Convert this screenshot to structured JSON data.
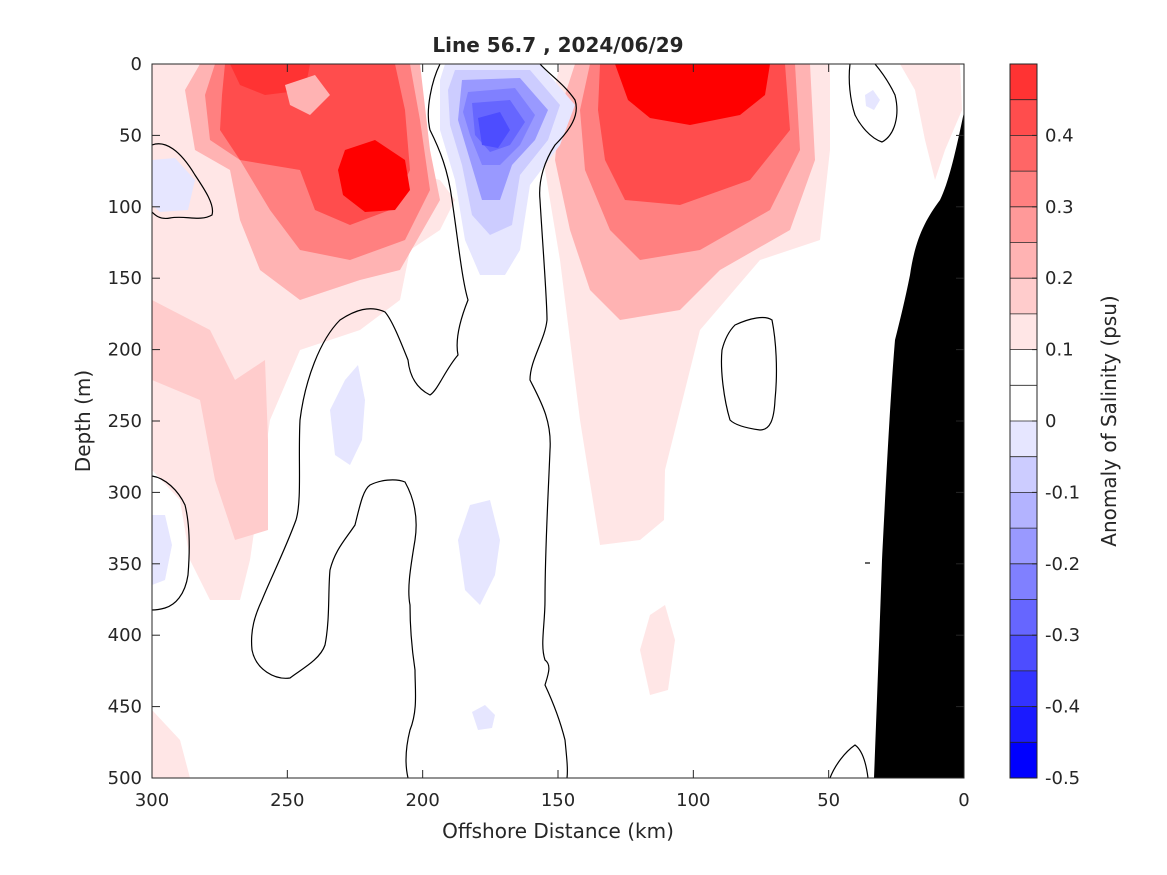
{
  "chart_data": {
    "type": "heatmap",
    "title": "Line 56.7 , 2024/06/29",
    "xlabel": "Offshore Distance (km)",
    "ylabel": "Depth (m)",
    "xlim": [
      300,
      0
    ],
    "ylim": [
      500,
      0
    ],
    "x_reversed": true,
    "y_reversed": true,
    "x_ticks": [
      300,
      250,
      200,
      150,
      100,
      50,
      0
    ],
    "y_ticks": [
      0,
      50,
      100,
      150,
      200,
      250,
      300,
      350,
      400,
      450,
      500
    ],
    "colorbar": {
      "label": "Anomaly of Salinity (psu)",
      "range": [
        -0.5,
        0.5
      ],
      "levels": [
        -0.5,
        -0.45,
        -0.4,
        -0.35,
        -0.3,
        -0.25,
        -0.2,
        -0.15,
        -0.1,
        -0.05,
        0,
        0.05,
        0.1,
        0.15,
        0.2,
        0.25,
        0.3,
        0.35,
        0.4,
        0.45,
        0.5
      ],
      "ticks": [
        -0.5,
        -0.4,
        -0.3,
        -0.2,
        -0.1,
        0,
        0.1,
        0.2,
        0.3,
        0.4
      ],
      "tick_labels": [
        "-0.5",
        "-0.4",
        "-0.3",
        "-0.2",
        "-0.1",
        "0",
        "0.1",
        "0.2",
        "0.3",
        "0.4"
      ],
      "colors": [
        "#0000ff",
        "#1a1aff",
        "#3333ff",
        "#4d4dff",
        "#6666ff",
        "#8080ff",
        "#9999ff",
        "#b3b3ff",
        "#ccccff",
        "#e6e6ff",
        "#ffffff",
        "#ffffff",
        "#ffe6e6",
        "#ffcccc",
        "#ffb3b3",
        "#ff9999",
        "#ff8080",
        "#ff6666",
        "#ff4d4d",
        "#ff3333",
        "#ff0000"
      ]
    },
    "features": [
      {
        "name": "positive-core-nearshore-top",
        "x": 97,
        "y": 15,
        "value": 0.48
      },
      {
        "name": "positive-core-shelfbreak",
        "x": 218,
        "y": 80,
        "value": 0.47
      },
      {
        "name": "positive-core-west-top",
        "x": 255,
        "y": 40,
        "value": 0.35
      },
      {
        "name": "positive-core-125km",
        "x": 128,
        "y": 70,
        "value": 0.42
      },
      {
        "name": "negative-core-175km",
        "x": 175,
        "y": 50,
        "value": -0.32
      },
      {
        "name": "negative-patch-west",
        "x": 293,
        "y": 80,
        "value": -0.12
      },
      {
        "name": "negative-patch-235km",
        "x": 234,
        "y": 250,
        "value": -0.06
      },
      {
        "name": "negative-patch-176km-deep",
        "x": 176,
        "y": 340,
        "value": -0.06
      }
    ],
    "grid": false,
    "bathymetry_color": "#000000"
  }
}
